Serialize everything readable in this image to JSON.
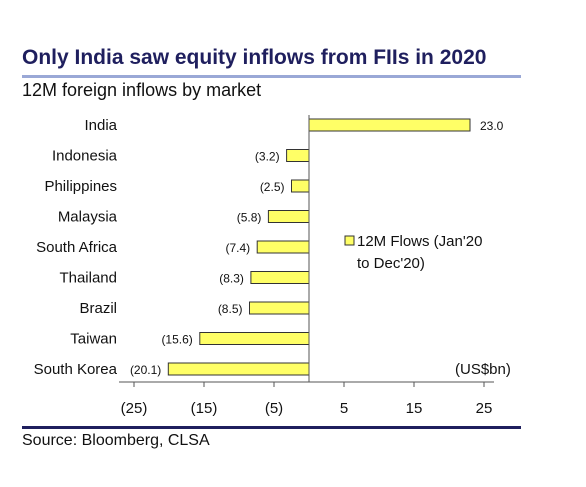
{
  "title": "Only India saw equity inflows from FIIs in 2020",
  "subtitle": "12M foreign inflows by market",
  "source": "Source: Bloomberg, CLSA",
  "colors": {
    "bar_fill": "#ffff66",
    "bar_stroke": "#333333",
    "title": "#1f1f5e",
    "title_rule": "#9aa8d6",
    "source_rule": "#1f1f5e"
  },
  "chart_data": {
    "type": "bar",
    "orientation": "horizontal",
    "categories": [
      "India",
      "Indonesia",
      "Philippines",
      "Malaysia",
      "South Africa",
      "Thailand",
      "Brazil",
      "Taiwan",
      "South Korea"
    ],
    "series": [
      {
        "name": "12M Flows (Jan'20 to Dec'20)",
        "legend_lines": [
          "12M Flows (Jan'20",
          "to Dec'20)"
        ],
        "values": [
          23.0,
          -3.2,
          -2.5,
          -5.8,
          -7.4,
          -8.3,
          -8.5,
          -15.6,
          -20.1
        ],
        "labels": [
          "23.0",
          "(3.2)",
          "(2.5)",
          "(5.8)",
          "(7.4)",
          "(8.3)",
          "(8.5)",
          "(15.6)",
          "(20.1)"
        ]
      }
    ],
    "xlim": [
      -30,
      30
    ],
    "x_ticks": [
      -25,
      -15,
      -5,
      5,
      15,
      25
    ],
    "x_tick_labels": [
      "(25)",
      "(15)",
      "(5)",
      "5",
      "15",
      "25"
    ],
    "unit_label": "(US$bn)",
    "legend_position": "center-right",
    "grid": false
  }
}
